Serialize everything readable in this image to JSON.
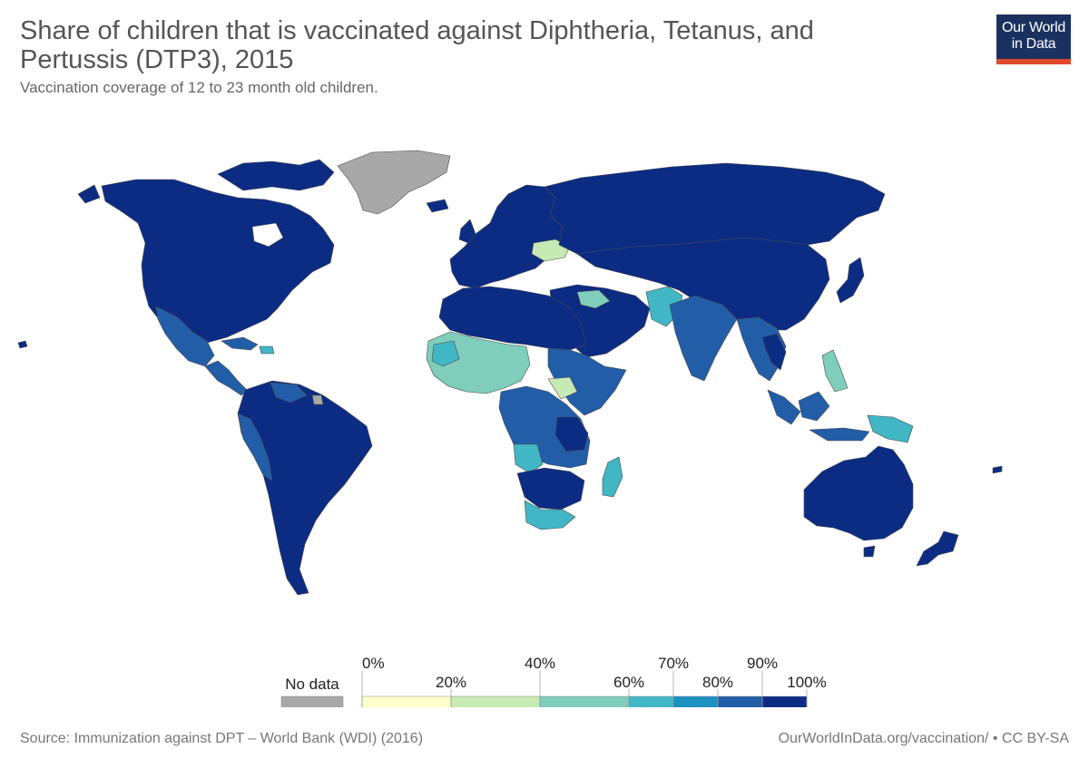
{
  "title": "Share of children that is vaccinated against Diphtheria, Tetanus, and Pertussis (DTP3), 2015",
  "subtitle": "Vaccination coverage of 12 to 23 month old children.",
  "logo": {
    "line1": "Our World",
    "line2": "in Data"
  },
  "legend": {
    "no_data_label": "No data",
    "no_data_color": "#a8a8a8",
    "bins": [
      {
        "from": "0%",
        "to": "20%",
        "color": "#ffffcc"
      },
      {
        "from": "20%",
        "to": "40%",
        "color": "#c7e9b4"
      },
      {
        "from": "40%",
        "to": "60%",
        "color": "#7fcdbb"
      },
      {
        "from": "60%",
        "to": "70%",
        "color": "#41b6c4"
      },
      {
        "from": "70%",
        "to": "80%",
        "color": "#1d91c0"
      },
      {
        "from": "80%",
        "to": "90%",
        "color": "#225ea8"
      },
      {
        "from": "90%",
        "to": "100%",
        "color": "#0c2c84"
      }
    ],
    "tick_labels": [
      "0%",
      "20%",
      "40%",
      "60%",
      "70%",
      "80%",
      "90%",
      "100%"
    ]
  },
  "source": "Source: Immunization against DPT – World Bank (WDI) (2016)",
  "credit": "OurWorldInData.org/vaccination/ • CC BY-SA"
}
